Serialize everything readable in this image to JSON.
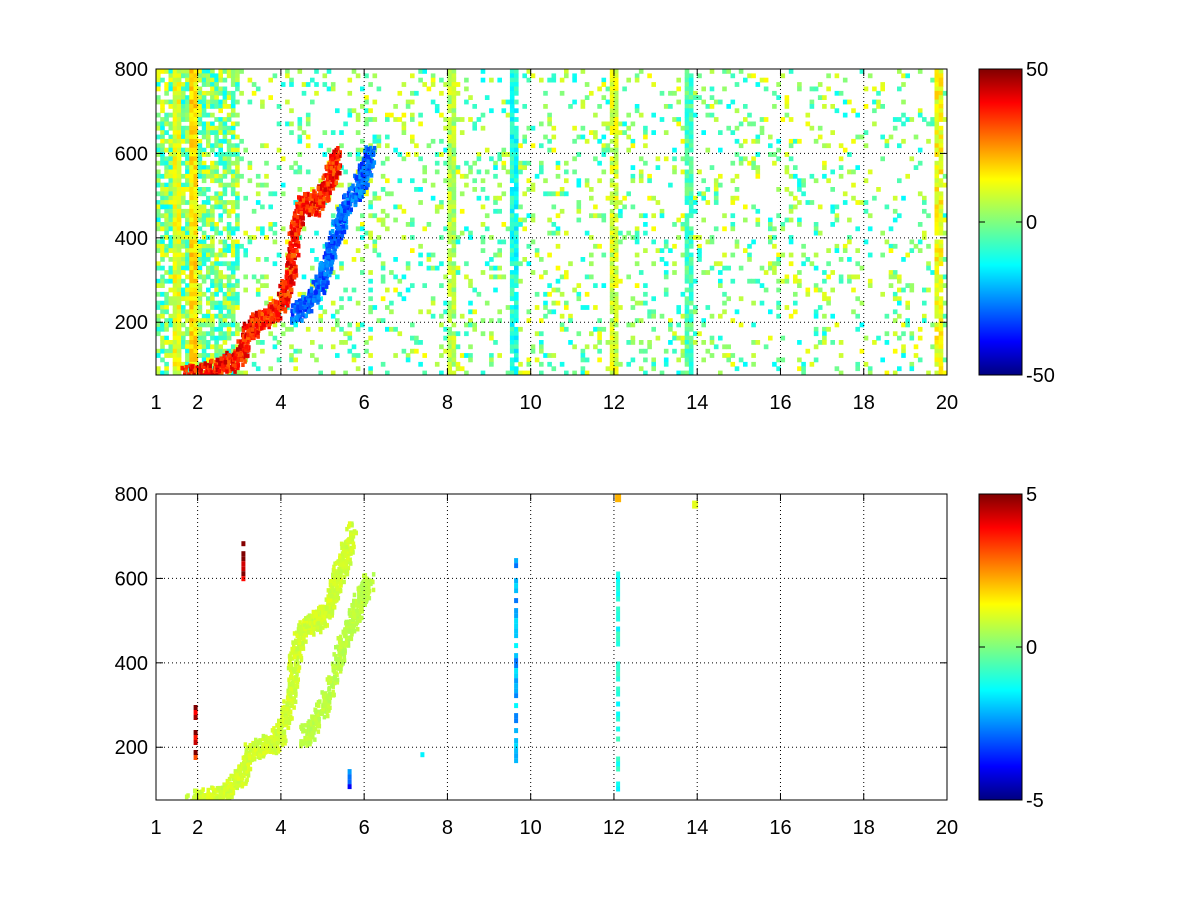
{
  "chart_data": [
    {
      "type": "heatmap",
      "title": "",
      "xlabel": "",
      "ylabel": "",
      "xlim": [
        1,
        20
      ],
      "ylim": [
        75,
        800
      ],
      "x_ticks": [
        1,
        2,
        4,
        6,
        8,
        10,
        12,
        14,
        16,
        18,
        20
      ],
      "x_tick_labels": [
        "1",
        "2",
        "4",
        "6",
        "8",
        "10",
        "12",
        "14",
        "16",
        "18",
        "20"
      ],
      "y_ticks": [
        200,
        400,
        600,
        800
      ],
      "y_tick_labels": [
        "200",
        "400",
        "600",
        "800"
      ],
      "grid": true,
      "grid_style": "dotted",
      "colormap": "jet",
      "clim": [
        -50,
        50
      ],
      "colorbar_ticks": [
        50,
        0,
        -50
      ],
      "colorbar_tick_labels": [
        "50",
        "0",
        "-50"
      ],
      "features": [
        {
          "kind": "ridge",
          "value": 35,
          "points": [
            [
              1.7,
              78
            ],
            [
              2.2,
              85
            ],
            [
              2.6,
              100
            ],
            [
              3.0,
              130
            ],
            [
              3.2,
              180
            ],
            [
              3.4,
              205
            ],
            [
              3.7,
              220
            ],
            [
              4.0,
              255
            ],
            [
              4.2,
              320
            ],
            [
              4.3,
              420
            ],
            [
              4.5,
              490
            ],
            [
              4.8,
              480
            ],
            [
              5.0,
              520
            ],
            [
              5.2,
              560
            ],
            [
              5.3,
              600
            ]
          ]
        },
        {
          "kind": "ridge",
          "value": -28,
          "points": [
            [
              4.3,
              225
            ],
            [
              4.6,
              250
            ],
            [
              4.9,
              290
            ],
            [
              5.1,
              350
            ],
            [
              5.3,
              420
            ],
            [
              5.5,
              470
            ],
            [
              5.8,
              520
            ],
            [
              6.0,
              560
            ],
            [
              6.1,
              610
            ]
          ]
        },
        {
          "kind": "band",
          "x": 1.5,
          "value": 10
        },
        {
          "kind": "band",
          "x": 1.9,
          "value": 15
        },
        {
          "kind": "band",
          "x": 8.1,
          "value": 5
        },
        {
          "kind": "band",
          "x": 9.6,
          "value": -10
        },
        {
          "kind": "band",
          "x": 12.0,
          "value": 8
        },
        {
          "kind": "band",
          "x": 13.8,
          "value": -5
        },
        {
          "kind": "band",
          "x": 19.8,
          "value": 12
        }
      ]
    },
    {
      "type": "heatmap",
      "title": "",
      "xlabel": "",
      "ylabel": "",
      "xlim": [
        1,
        20
      ],
      "ylim": [
        75,
        800
      ],
      "x_ticks": [
        1,
        2,
        4,
        6,
        8,
        10,
        12,
        14,
        16,
        18,
        20
      ],
      "x_tick_labels": [
        "1",
        "2",
        "4",
        "6",
        "8",
        "10",
        "12",
        "14",
        "16",
        "18",
        "20"
      ],
      "y_ticks": [
        200,
        400,
        600,
        800
      ],
      "y_tick_labels": [
        "200",
        "400",
        "600",
        "800"
      ],
      "grid": true,
      "grid_style": "dotted",
      "colormap": "jet",
      "clim": [
        -5,
        5
      ],
      "colorbar_ticks": [
        5,
        0,
        -5
      ],
      "colorbar_tick_labels": [
        "5",
        "0",
        "-5"
      ],
      "features": [
        {
          "kind": "ridge",
          "value": 0.8,
          "points": [
            [
              1.8,
              78
            ],
            [
              2.3,
              85
            ],
            [
              2.7,
              100
            ],
            [
              3.0,
              130
            ],
            [
              3.2,
              190
            ],
            [
              3.5,
              205
            ],
            [
              3.8,
              215
            ],
            [
              4.0,
              245
            ],
            [
              4.2,
              320
            ],
            [
              4.3,
              420
            ],
            [
              4.5,
              490
            ],
            [
              4.8,
              500
            ],
            [
              5.0,
              520
            ],
            [
              5.2,
              560
            ],
            [
              5.3,
              600
            ],
            [
              5.5,
              650
            ],
            [
              5.7,
              720
            ]
          ]
        },
        {
          "kind": "ridge",
          "value": 0.6,
          "points": [
            [
              4.5,
              225
            ],
            [
              4.8,
              260
            ],
            [
              5.1,
              330
            ],
            [
              5.4,
              440
            ],
            [
              5.7,
              510
            ],
            [
              5.9,
              560
            ],
            [
              6.1,
              600
            ]
          ]
        },
        {
          "kind": "stripe",
          "x": 9.65,
          "y_range": [
            170,
            660
          ],
          "value": -2
        },
        {
          "kind": "stripe",
          "x": 12.1,
          "y_range": [
            100,
            640
          ],
          "value": -1
        },
        {
          "kind": "stripe",
          "x": 1.95,
          "y_range": [
            170,
            300
          ],
          "value": 5
        },
        {
          "kind": "stripe",
          "x": 3.1,
          "y_range": [
            600,
            700
          ],
          "value": 5
        },
        {
          "kind": "stripe",
          "x": 5.65,
          "y_range": [
            100,
            160
          ],
          "value": -3
        },
        {
          "kind": "stripe",
          "x": 7.4,
          "y_range": [
            180,
            200
          ],
          "value": -2
        },
        {
          "kind": "dot",
          "x": 12.1,
          "y": 790,
          "value": 2
        },
        {
          "kind": "dot",
          "x": 13.95,
          "y": 775,
          "value": 1
        }
      ]
    }
  ]
}
